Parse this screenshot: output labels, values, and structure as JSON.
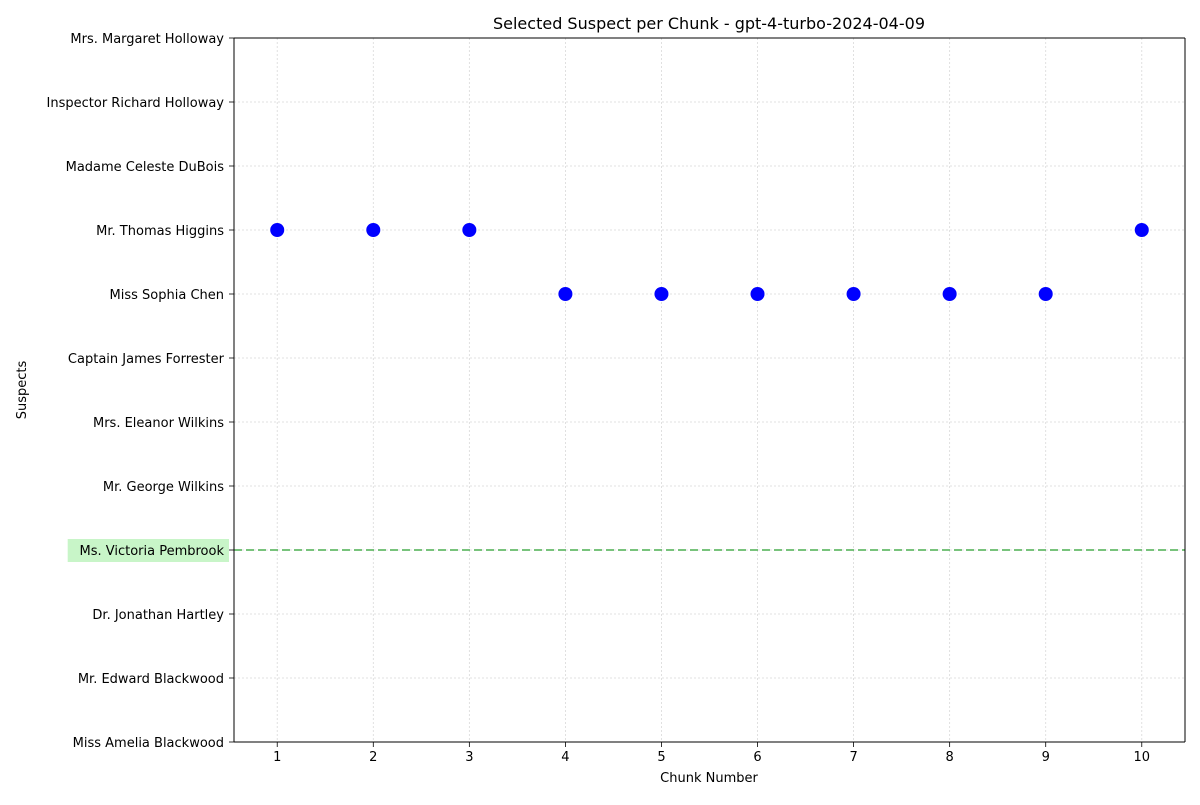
{
  "chart_data": {
    "type": "scatter",
    "title": "Selected Suspect per Chunk - gpt-4-turbo-2024-04-09",
    "xlabel": "Chunk Number",
    "ylabel": "Suspects",
    "x_ticks": [
      "1",
      "2",
      "3",
      "4",
      "5",
      "6",
      "7",
      "8",
      "9",
      "10"
    ],
    "xlim": [
      0.55,
      10.45
    ],
    "categories": [
      "Miss Amelia Blackwood",
      "Mr. Edward Blackwood",
      "Dr. Jonathan Hartley",
      "Ms. Victoria Pembrook",
      "Mr. George Wilkins",
      "Mrs. Eleanor Wilkins",
      "Captain James Forrester",
      "Miss Sophia Chen",
      "Mr. Thomas Higgins",
      "Madame Celeste DuBois",
      "Inspector Richard Holloway",
      "Mrs. Margaret Holloway"
    ],
    "points": [
      {
        "x": 1,
        "y": "Mr. Thomas Higgins"
      },
      {
        "x": 2,
        "y": "Mr. Thomas Higgins"
      },
      {
        "x": 3,
        "y": "Mr. Thomas Higgins"
      },
      {
        "x": 4,
        "y": "Miss Sophia Chen"
      },
      {
        "x": 5,
        "y": "Miss Sophia Chen"
      },
      {
        "x": 6,
        "y": "Miss Sophia Chen"
      },
      {
        "x": 7,
        "y": "Miss Sophia Chen"
      },
      {
        "x": 8,
        "y": "Miss Sophia Chen"
      },
      {
        "x": 9,
        "y": "Miss Sophia Chen"
      },
      {
        "x": 10,
        "y": "Mr. Thomas Higgins"
      }
    ],
    "highlighted_category": "Ms. Victoria Pembrook",
    "grid": true,
    "colors": {
      "points": "#0000ff",
      "highlight_line": "#4caf50",
      "highlight_label_bg": "#c8f5c8",
      "grid": "#d9d9d9"
    }
  }
}
